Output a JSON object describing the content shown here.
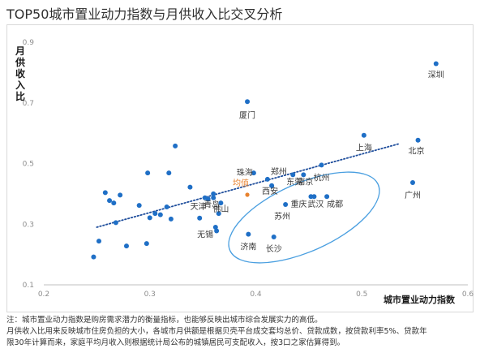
{
  "title": "TOP50城市置业动力指数与月供收入比交叉分析",
  "chart_data": {
    "type": "scatter",
    "title": "TOP50城市置业动力指数与月供收入比交叉分析",
    "xlabel": "城市置业动力指数",
    "ylabel": "月供收入比",
    "xlim": [
      0.2,
      0.6
    ],
    "ylim": [
      0.1,
      0.9
    ],
    "xticks": [
      "0.2",
      "0.3",
      "0.4",
      "0.5",
      "0.6"
    ],
    "yticks": [
      "0.1",
      "0.3",
      "0.5",
      "0.7",
      "0.9"
    ],
    "grid": false,
    "trendline": {
      "type": "linear",
      "style": "dotted",
      "color": "#1f4e9c",
      "from": [
        0.25,
        0.29
      ],
      "to": [
        0.535,
        0.565
      ]
    },
    "average_label": "均值",
    "average_point": {
      "x": 0.392,
      "y": 0.397
    },
    "highlight_ellipse_color": "#4a9fe0",
    "point_color": "#1f6fc6",
    "labeled_points": [
      {
        "label": "深圳",
        "x": 0.57,
        "y": 0.829
      },
      {
        "label": "厦门",
        "x": 0.392,
        "y": 0.704
      },
      {
        "label": "上海",
        "x": 0.502,
        "y": 0.593
      },
      {
        "label": "北京",
        "x": 0.553,
        "y": 0.577
      },
      {
        "label": "珠海",
        "x": 0.398,
        "y": 0.469
      },
      {
        "label": "郑州",
        "x": 0.411,
        "y": 0.448
      },
      {
        "label": "杭州",
        "x": 0.462,
        "y": 0.495
      },
      {
        "label": "南京",
        "x": 0.445,
        "y": 0.463
      },
      {
        "label": "东莞",
        "x": 0.435,
        "y": 0.463
      },
      {
        "label": "西安",
        "x": 0.415,
        "y": 0.427
      },
      {
        "label": "广州",
        "x": 0.548,
        "y": 0.437
      },
      {
        "label": "成都",
        "x": 0.467,
        "y": 0.391
      },
      {
        "label": "武汉",
        "x": 0.455,
        "y": 0.391
      },
      {
        "label": "重庆",
        "x": 0.452,
        "y": 0.391
      },
      {
        "label": "苏州",
        "x": 0.428,
        "y": 0.365
      },
      {
        "label": "青岛",
        "x": 0.36,
        "y": 0.387
      },
      {
        "label": "天津",
        "x": 0.355,
        "y": 0.383
      },
      {
        "label": "佛山",
        "x": 0.367,
        "y": 0.37
      },
      {
        "label": "无锡",
        "x": 0.363,
        "y": 0.278
      },
      {
        "label": "济南",
        "x": 0.393,
        "y": 0.267
      },
      {
        "label": "长沙",
        "x": 0.417,
        "y": 0.258
      }
    ],
    "other_points": [
      {
        "x": 0.247,
        "y": 0.192
      },
      {
        "x": 0.252,
        "y": 0.244
      },
      {
        "x": 0.258,
        "y": 0.404
      },
      {
        "x": 0.262,
        "y": 0.378
      },
      {
        "x": 0.266,
        "y": 0.37
      },
      {
        "x": 0.268,
        "y": 0.305
      },
      {
        "x": 0.272,
        "y": 0.396
      },
      {
        "x": 0.278,
        "y": 0.228
      },
      {
        "x": 0.29,
        "y": 0.362
      },
      {
        "x": 0.297,
        "y": 0.236
      },
      {
        "x": 0.298,
        "y": 0.469
      },
      {
        "x": 0.3,
        "y": 0.321
      },
      {
        "x": 0.305,
        "y": 0.335
      },
      {
        "x": 0.31,
        "y": 0.331
      },
      {
        "x": 0.316,
        "y": 0.357
      },
      {
        "x": 0.318,
        "y": 0.469
      },
      {
        "x": 0.32,
        "y": 0.317
      },
      {
        "x": 0.324,
        "y": 0.558
      },
      {
        "x": 0.338,
        "y": 0.422
      },
      {
        "x": 0.347,
        "y": 0.32
      },
      {
        "x": 0.352,
        "y": 0.387
      },
      {
        "x": 0.36,
        "y": 0.4
      },
      {
        "x": 0.362,
        "y": 0.29
      },
      {
        "x": 0.365,
        "y": 0.335
      }
    ]
  },
  "notes": [
    "注：城市置业动力指数是购房需求潜力的衡量指标，也能够反映出城市综合发展实力的高低。",
    "月供收入比用来反映城市住房负担的大小，各城市月供额是根据贝壳平台成交套均总价、贷款成数，按贷款利率5%、贷款年",
    "限30年计算而来，家庭平均月收入则根据统计局公布的城镇居民可支配收入，按3口之家估算得到。"
  ]
}
